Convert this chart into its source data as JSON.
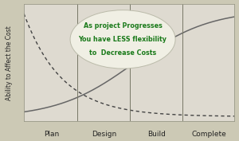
{
  "background_color": "#ccc9b5",
  "plot_bg_color": "#dedad0",
  "title_text_line1": "As project Progresses",
  "title_text_line2": "You have LESS flexibility",
  "title_text_line3": "to  Decrease Costs",
  "title_color": "#1a7a1a",
  "ylabel": "Ability to Affect the Cost",
  "xlabel_ticks": [
    "Plan",
    "Design",
    "Build",
    "Complete"
  ],
  "xlabel_tick_positions": [
    0.13,
    0.38,
    0.63,
    0.88
  ],
  "vline_positions": [
    0.255,
    0.505,
    0.755
  ],
  "curve_color_dashed": "#444444",
  "curve_color_solid": "#666666",
  "ellipse_fc": "#f0efe4",
  "ellipse_ec": "#bbbbaa",
  "ylabel_fontsize": 5.5,
  "xlabel_fontsize": 6.5,
  "annotation_fontsize": 5.8
}
